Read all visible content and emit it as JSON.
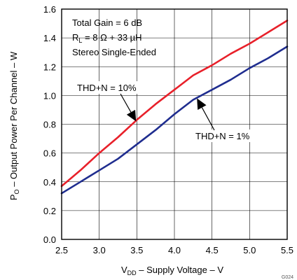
{
  "chart_data": {
    "type": "line",
    "xlabel": {
      "pre": "V",
      "sub": "DD",
      "post": " – Supply Voltage – V"
    },
    "ylabel": {
      "pre": "P",
      "sub": "O",
      "post": " – Output Power Per Channel – W"
    },
    "xlim": [
      2.5,
      5.5
    ],
    "ylim": [
      0,
      1.6
    ],
    "xticks": [
      "2.5",
      "3.0",
      "3.5",
      "4.0",
      "4.5",
      "5.0",
      "5.5"
    ],
    "yticks": [
      "0.0",
      "0.2",
      "0.4",
      "0.6",
      "0.8",
      "1.0",
      "1.2",
      "1.4",
      "1.6"
    ],
    "grid": true,
    "legend_box": {
      "line1": "Total Gain = 6 dB",
      "line2": {
        "pre": "R",
        "sub": "L",
        "post": " = 8 Ω + 33 µH"
      },
      "line3": "Stereo Single-Ended"
    },
    "series": [
      {
        "name": "THD+N = 10%",
        "color": "#e8202a",
        "x": [
          2.5,
          2.75,
          3.0,
          3.25,
          3.5,
          3.75,
          4.0,
          4.25,
          4.5,
          4.75,
          5.0,
          5.25,
          5.5
        ],
        "y": [
          0.37,
          0.48,
          0.6,
          0.71,
          0.83,
          0.94,
          1.04,
          1.14,
          1.21,
          1.29,
          1.36,
          1.44,
          1.52
        ]
      },
      {
        "name": "THD+N = 1%",
        "color": "#1f2d8f",
        "x": [
          2.5,
          2.75,
          3.0,
          3.25,
          3.5,
          3.75,
          4.0,
          4.25,
          4.5,
          4.75,
          5.0,
          5.25,
          5.5
        ],
        "y": [
          0.32,
          0.4,
          0.48,
          0.56,
          0.66,
          0.76,
          0.87,
          0.97,
          1.04,
          1.11,
          1.19,
          1.26,
          1.34
        ]
      }
    ],
    "annotations": [
      {
        "text": "THD+N = 10%"
      },
      {
        "text": "THD+N = 1%"
      }
    ],
    "figure_code": "G024"
  }
}
